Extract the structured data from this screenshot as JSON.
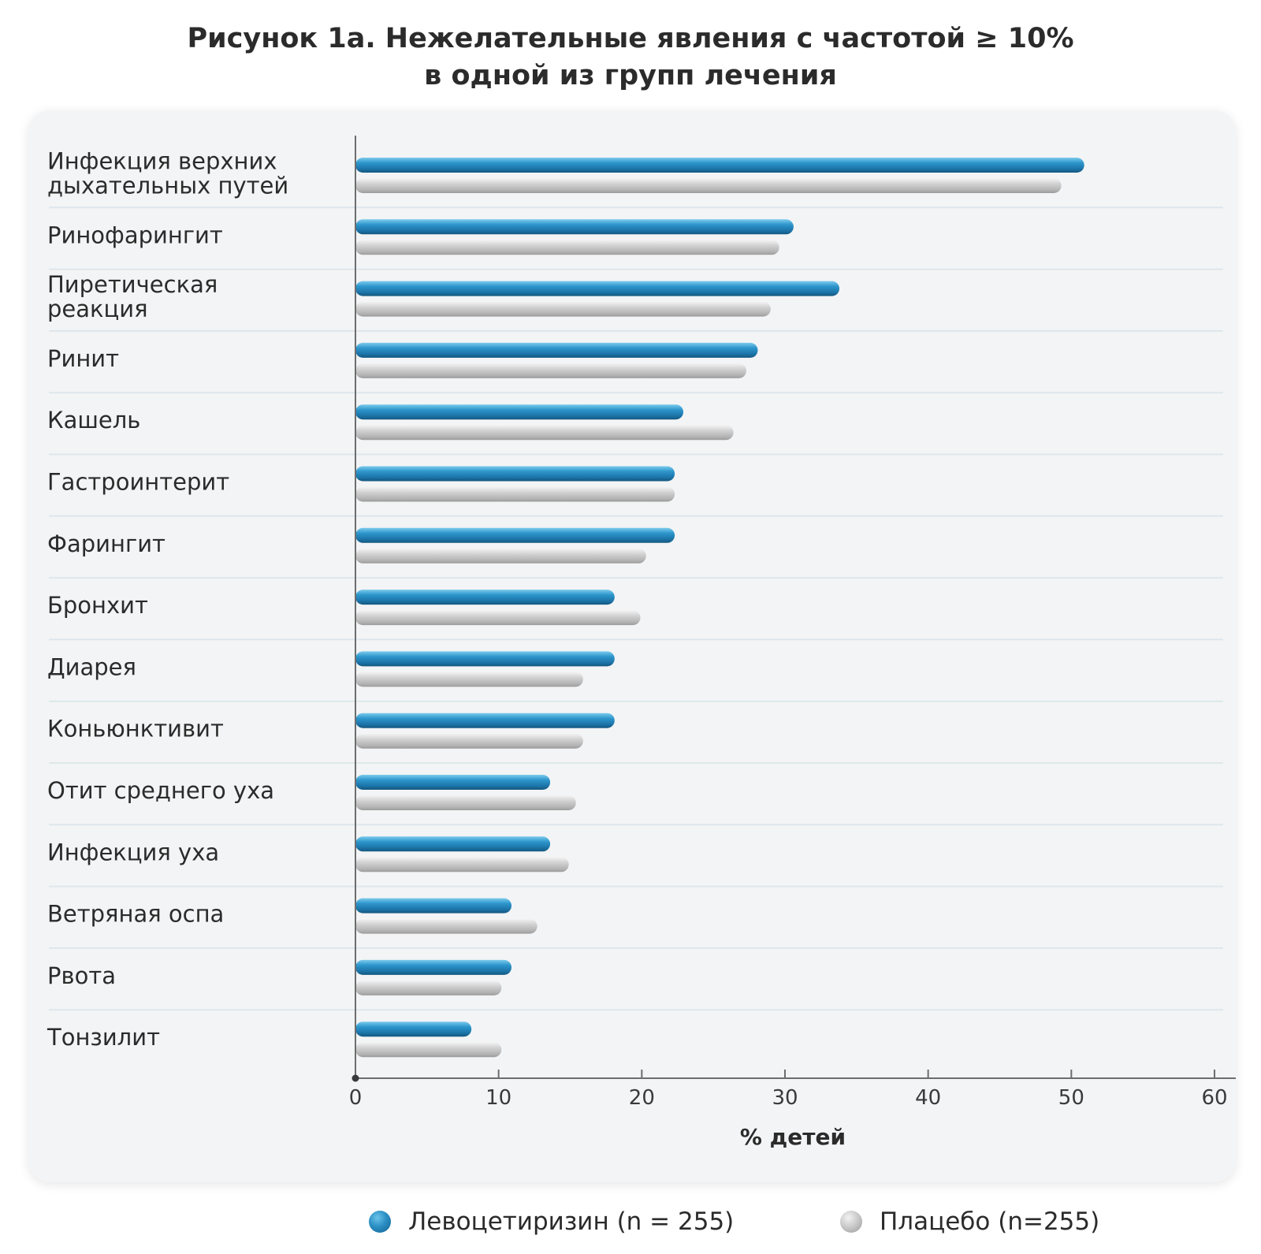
{
  "title_line1": "Рисунок 1а. Нежелательные явления с частотой ≥ 10%",
  "title_line2": "в одной из групп лечения",
  "chart_data": {
    "type": "bar",
    "orientation": "horizontal",
    "categories": [
      [
        "Инфекция верхних",
        "дыхательных путей"
      ],
      [
        "Ринофарингит"
      ],
      [
        "Пиретическая",
        "реакция"
      ],
      [
        "Ринит"
      ],
      [
        "Кашель"
      ],
      [
        "Гастроинтерит"
      ],
      [
        "Фарингит"
      ],
      [
        "Бронхит"
      ],
      [
        "Диарея"
      ],
      [
        "Коньюнктивит"
      ],
      [
        "Отит среднего уха"
      ],
      [
        "Инфекция уха"
      ],
      [
        "Ветряная оспа"
      ],
      [
        "Рвота"
      ],
      [
        "Тонзилит"
      ]
    ],
    "series": [
      {
        "name": "Левоцетиризин (n = 255)",
        "color": "#2a8fc4",
        "values": [
          50.9,
          30.6,
          33.8,
          28.1,
          22.9,
          22.3,
          22.3,
          18.1,
          18.1,
          18.1,
          13.6,
          13.6,
          10.9,
          10.9,
          8.1
        ]
      },
      {
        "name": "Плацебо (n=255)",
        "color": "#bdbdbd",
        "values": [
          49.3,
          29.6,
          29.0,
          27.3,
          26.4,
          22.3,
          20.3,
          19.9,
          15.9,
          15.9,
          15.4,
          14.9,
          12.7,
          10.2,
          10.2
        ]
      }
    ],
    "xlim": [
      0,
      60
    ],
    "xticks": [
      0,
      10,
      20,
      30,
      40,
      50,
      60
    ],
    "xlabel": "% детей",
    "legend_position": "bottom"
  }
}
